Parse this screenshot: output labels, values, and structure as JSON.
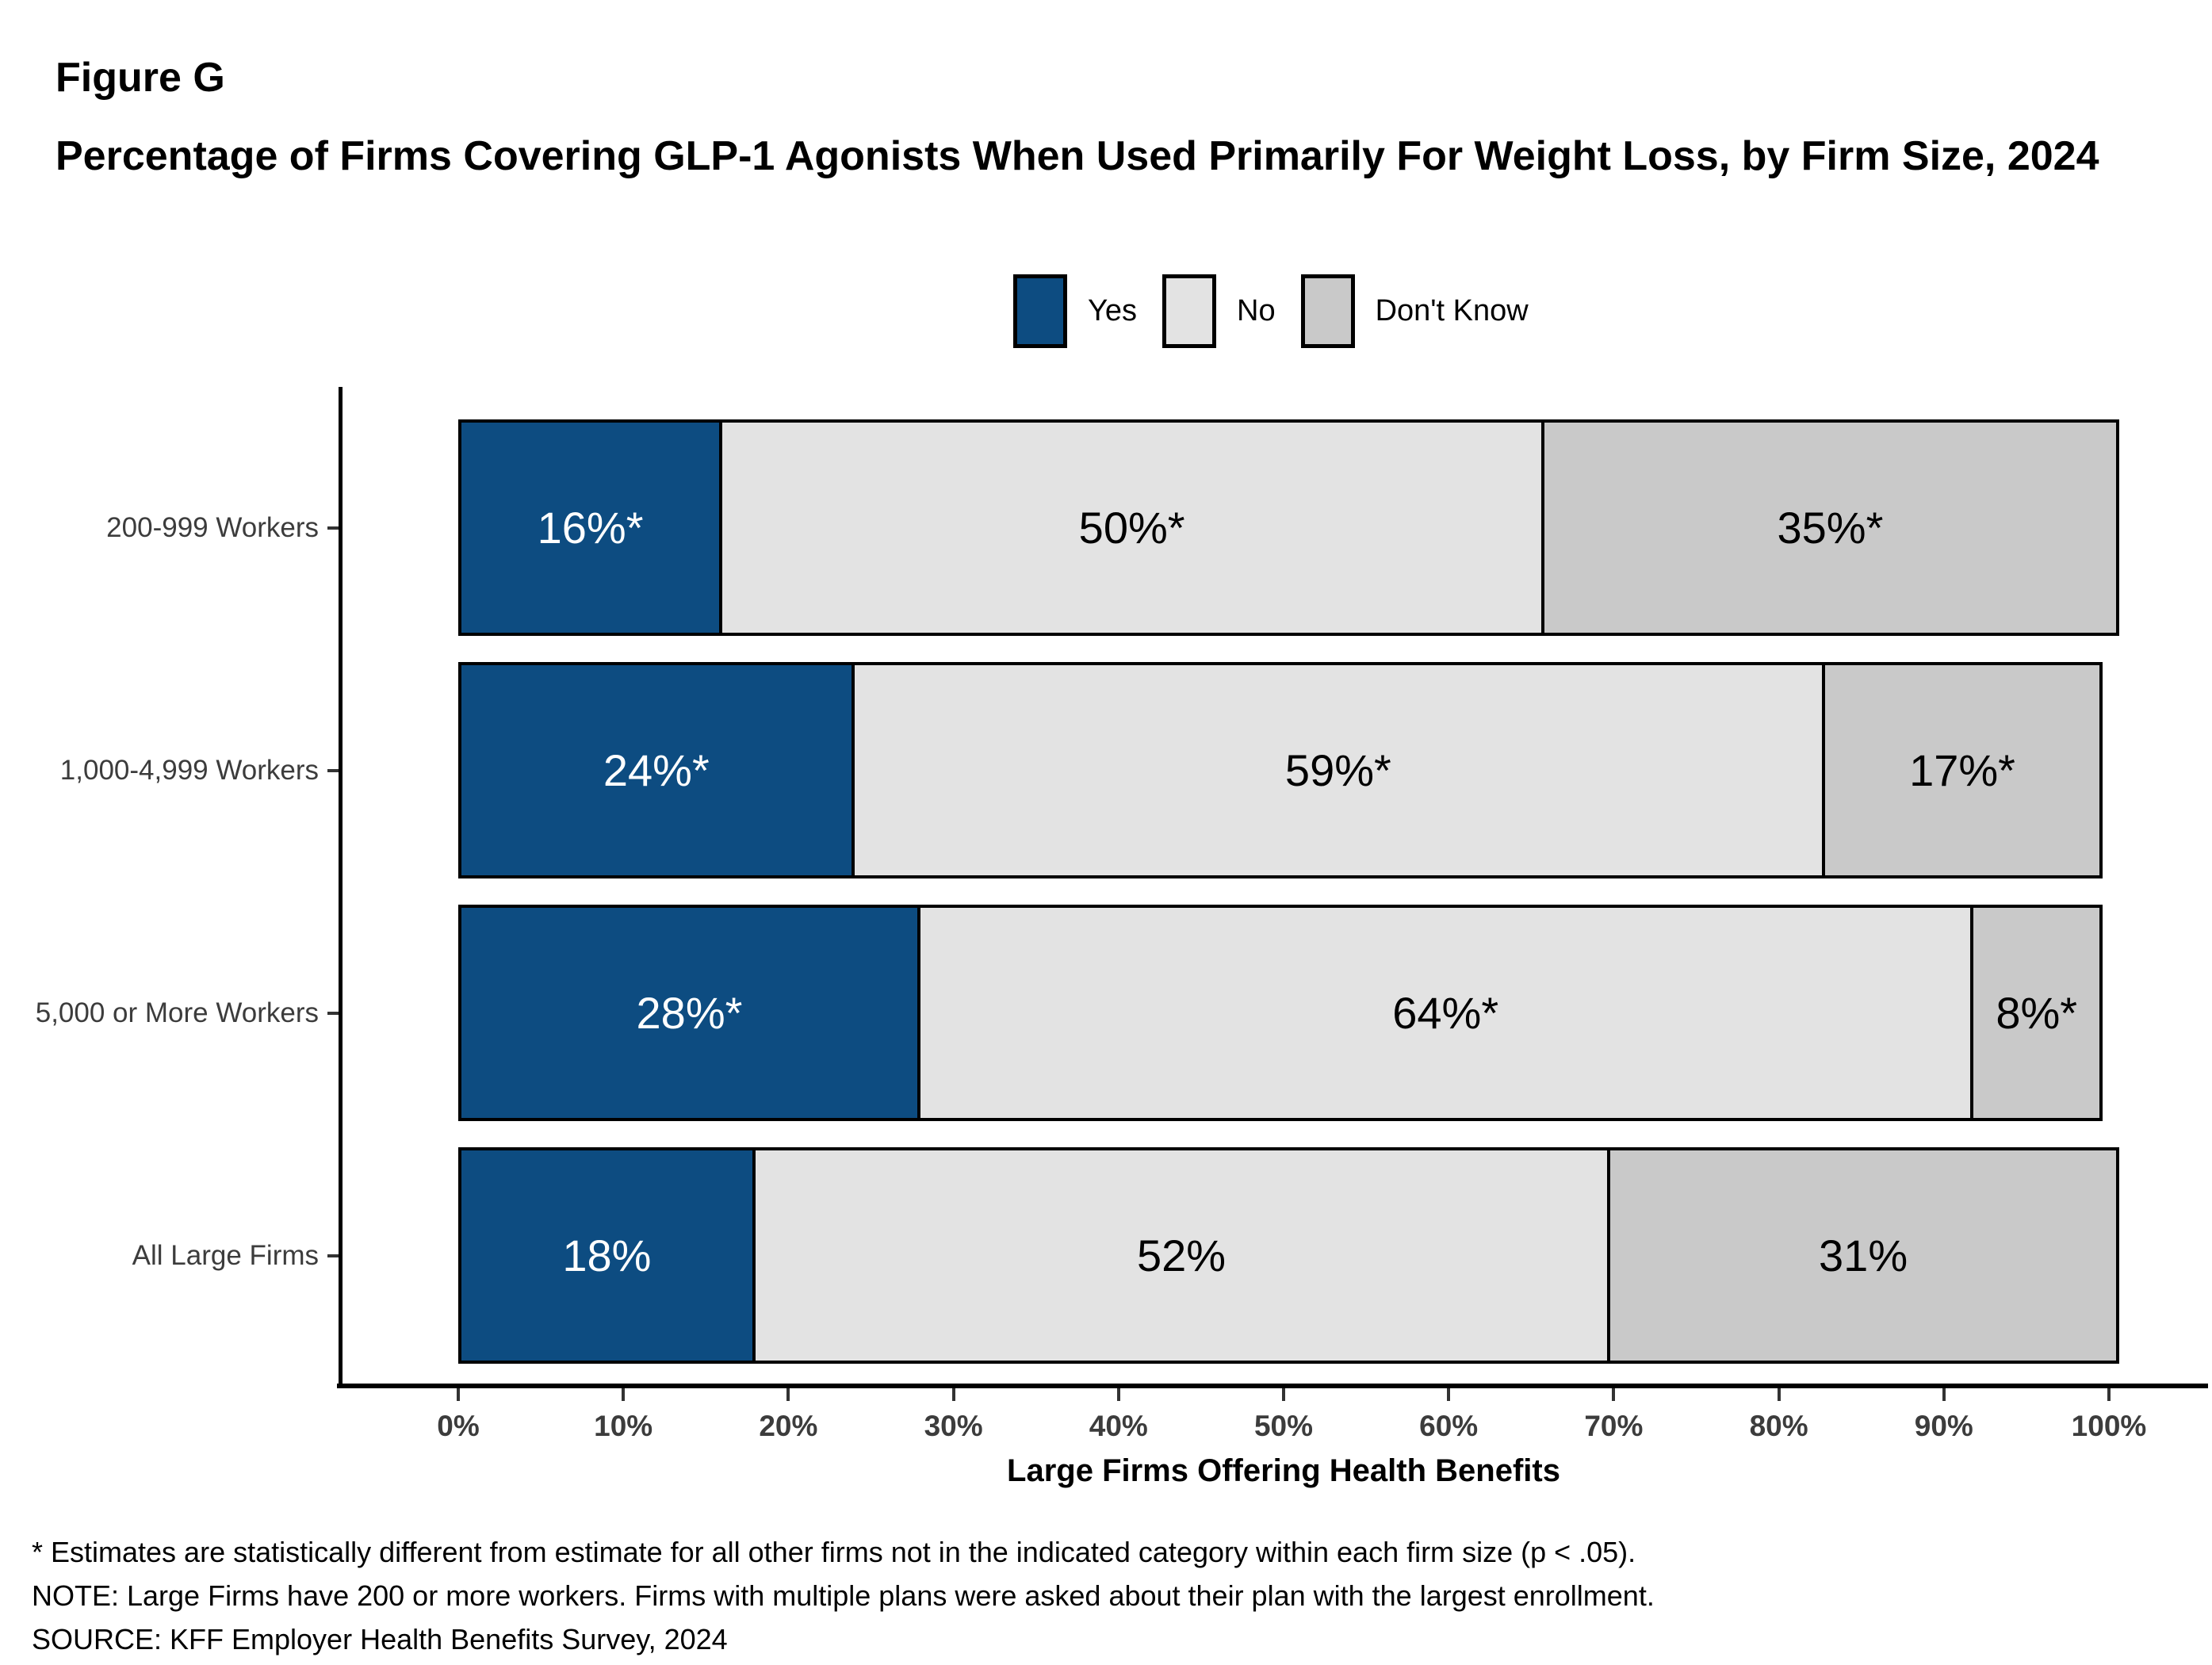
{
  "figure_label": "Figure G",
  "title": "Percentage of Firms Covering GLP-1 Agonists When Used Primarily For Weight Loss, by Firm Size, 2024",
  "chart_data": {
    "type": "bar",
    "stacked": true,
    "orientation": "horizontal",
    "title": "Percentage of Firms Covering GLP-1 Agonists When Used Primarily For Weight Loss, by Firm Size, 2024",
    "categories": [
      "200-999 Workers",
      "1,000-4,999 Workers",
      "5,000 or More Workers",
      "All Large Firms"
    ],
    "series": [
      {
        "name": "Yes",
        "color": "#0D4C81",
        "label_color": "#FFFFFF",
        "values": [
          16,
          24,
          28,
          18
        ],
        "labels": [
          "16%*",
          "24%*",
          "28%*",
          "18%"
        ]
      },
      {
        "name": "No",
        "color": "#E3E3E3",
        "label_color": "#000000",
        "values": [
          50,
          59,
          64,
          52
        ],
        "labels": [
          "50%*",
          "59%*",
          "64%*",
          "52%"
        ]
      },
      {
        "name": "Don't Know",
        "color": "#C9C9C9",
        "label_color": "#000000",
        "values": [
          35,
          17,
          8,
          31
        ],
        "labels": [
          "35%*",
          "17%*",
          "8%*",
          "31%"
        ]
      }
    ],
    "xlabel": "Large Firms Offering Health Benefits",
    "ylabel": "",
    "xlim": [
      0,
      100
    ],
    "x_ticks": [
      "0%",
      "10%",
      "20%",
      "30%",
      "40%",
      "50%",
      "60%",
      "70%",
      "80%",
      "90%",
      "100%"
    ],
    "grid": false,
    "legend_position": "top",
    "bar_border_color": "#000000"
  },
  "footnotes": [
    "* Estimates are statistically different from estimate for all other firms not in the indicated category within each firm size (p < .05).",
    "NOTE: Large Firms have 200 or more workers.  Firms with multiple plans were asked about their plan with the largest enrollment.",
    "SOURCE: KFF Employer Health Benefits Survey, 2024"
  ]
}
